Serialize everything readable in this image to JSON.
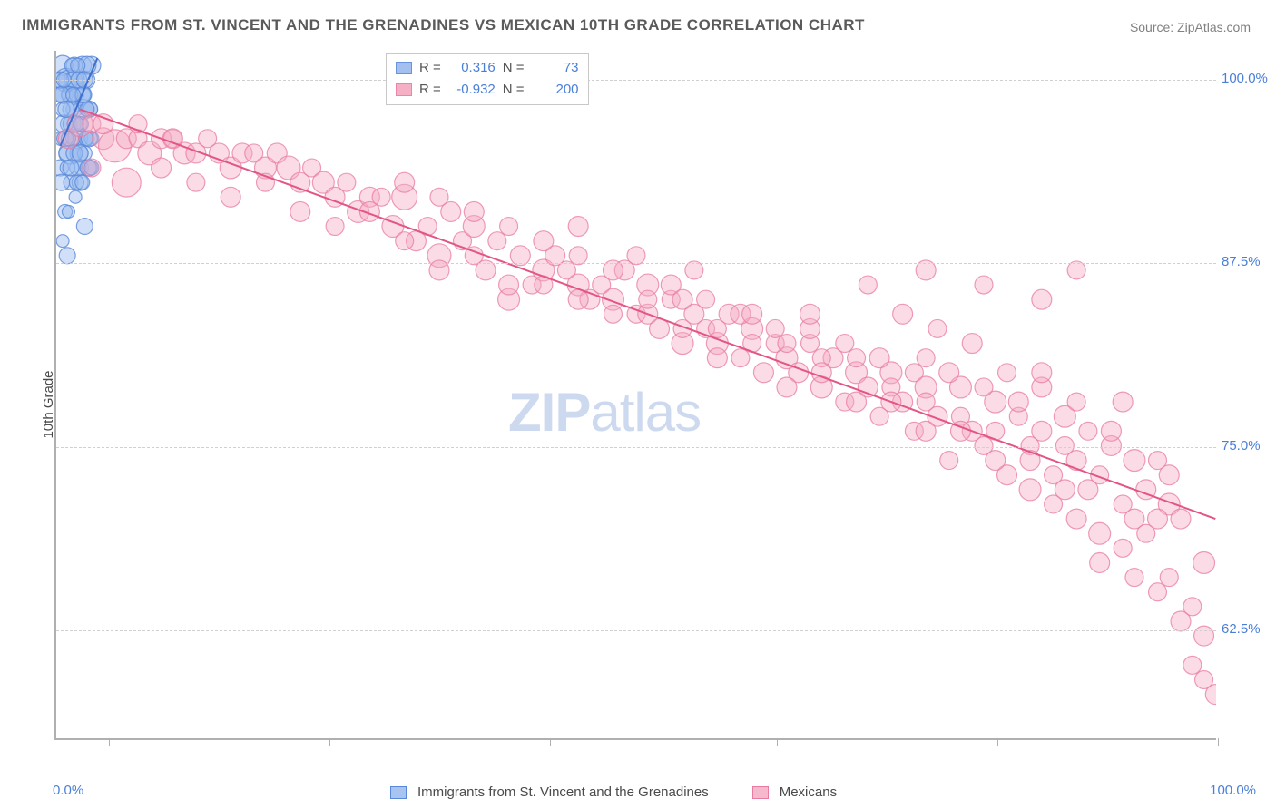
{
  "title": "IMMIGRANTS FROM ST. VINCENT AND THE GRENADINES VS MEXICAN 10TH GRADE CORRELATION CHART",
  "source": "Source: ZipAtlas.com",
  "ylabel": "10th Grade",
  "watermark_a": "ZIP",
  "watermark_b": "atlas",
  "chart": {
    "type": "scatter",
    "xlim": [
      0,
      100
    ],
    "ylim": [
      55,
      102
    ],
    "y_ticks": [
      62.5,
      75.0,
      87.5,
      100.0
    ],
    "y_tick_labels": [
      "62.5%",
      "75.0%",
      "87.5%",
      "100.0%"
    ],
    "x_end_labels": [
      "0.0%",
      "100.0%"
    ],
    "x_tick_positions": [
      4.5,
      23.5,
      42.5,
      62,
      81,
      100
    ],
    "grid_color": "#d0d0d0",
    "axis_color": "#b0b0b0",
    "background_color": "#ffffff",
    "label_color": "#4a7fd8"
  },
  "series": [
    {
      "name": "Immigrants from St. Vincent and the Grenadines",
      "fill": "#9abaf0",
      "fill_opacity": 0.45,
      "stroke": "#5988d8",
      "stroke_opacity": 0.8,
      "r_label": "R =",
      "r_value": "0.316",
      "n_label": "N =",
      "n_value": "73",
      "trend": {
        "x1": 0.3,
        "y1": 95.5,
        "x2": 3.5,
        "y2": 101.5,
        "stroke": "#3d6fcf",
        "width": 2
      },
      "points": [
        [
          0.3,
          94,
          9
        ],
        [
          0.4,
          96,
          8
        ],
        [
          0.5,
          101,
          11
        ],
        [
          0.6,
          99,
          10
        ],
        [
          0.8,
          100,
          13
        ],
        [
          1.0,
          97,
          9
        ],
        [
          1.1,
          95,
          12
        ],
        [
          1.2,
          93,
          8
        ],
        [
          1.4,
          100,
          10
        ],
        [
          1.5,
          98,
          9
        ],
        [
          1.6,
          92,
          7
        ],
        [
          1.8,
          96,
          11
        ],
        [
          2.0,
          99,
          12
        ],
        [
          2.1,
          94,
          8
        ],
        [
          2.2,
          101,
          10
        ],
        [
          2.4,
          90,
          9
        ],
        [
          0.5,
          89,
          7
        ],
        [
          0.7,
          91,
          8
        ],
        [
          0.9,
          88,
          9
        ],
        [
          1.0,
          100,
          11
        ],
        [
          1.3,
          97,
          10
        ],
        [
          1.5,
          101,
          9
        ],
        [
          1.7,
          99,
          8
        ],
        [
          1.9,
          95,
          10
        ],
        [
          2.0,
          93,
          9
        ],
        [
          2.3,
          98,
          11
        ],
        [
          2.5,
          100,
          10
        ],
        [
          2.6,
          96,
          8
        ],
        [
          2.8,
          94,
          9
        ],
        [
          3.0,
          101,
          10
        ],
        [
          0.2,
          99,
          8
        ],
        [
          0.4,
          93,
          9
        ],
        [
          0.6,
          97,
          10
        ],
        [
          0.8,
          95,
          8
        ],
        [
          1.0,
          91,
          7
        ],
        [
          1.2,
          98,
          9
        ],
        [
          1.4,
          96,
          8
        ],
        [
          1.6,
          100,
          10
        ],
        [
          1.8,
          94,
          9
        ],
        [
          2.0,
          97,
          8
        ],
        [
          2.2,
          99,
          9
        ],
        [
          2.4,
          95,
          8
        ],
        [
          2.6,
          101,
          10
        ],
        [
          2.8,
          98,
          9
        ],
        [
          3.0,
          96,
          8
        ],
        [
          0.3,
          100,
          9
        ],
        [
          0.5,
          98,
          8
        ],
        [
          0.7,
          96,
          9
        ],
        [
          0.9,
          94,
          8
        ],
        [
          1.1,
          99,
          9
        ],
        [
          1.3,
          101,
          8
        ],
        [
          1.5,
          95,
          9
        ],
        [
          1.7,
          93,
          8
        ],
        [
          1.9,
          100,
          9
        ],
        [
          2.1,
          97,
          8
        ],
        [
          2.3,
          99,
          9
        ],
        [
          2.5,
          96,
          8
        ],
        [
          2.7,
          94,
          9
        ],
        [
          2.9,
          98,
          8
        ],
        [
          0.4,
          99,
          9
        ],
        [
          0.6,
          100,
          8
        ],
        [
          0.8,
          98,
          9
        ],
        [
          1.0,
          96,
          8
        ],
        [
          1.2,
          94,
          9
        ],
        [
          1.4,
          99,
          8
        ],
        [
          1.6,
          97,
          9
        ],
        [
          1.8,
          101,
          8
        ],
        [
          2.0,
          95,
          9
        ],
        [
          2.2,
          93,
          8
        ],
        [
          2.4,
          100,
          9
        ],
        [
          2.6,
          98,
          8
        ],
        [
          2.8,
          96,
          9
        ],
        [
          3.0,
          94,
          8
        ]
      ]
    },
    {
      "name": "Mexicans",
      "fill": "#f4a8c0",
      "fill_opacity": 0.4,
      "stroke": "#e87ba0",
      "stroke_opacity": 0.75,
      "r_label": "R =",
      "r_value": "-0.932",
      "n_label": "N =",
      "n_value": "200",
      "trend": {
        "x1": 2,
        "y1": 98,
        "x2": 100,
        "y2": 70,
        "stroke": "#e25584",
        "width": 2
      },
      "points": [
        [
          1,
          96,
          11
        ],
        [
          2,
          97,
          14
        ],
        [
          3,
          97,
          10
        ],
        [
          4,
          96,
          12
        ],
        [
          5,
          95.5,
          18
        ],
        [
          6,
          96,
          11
        ],
        [
          7,
          96,
          10
        ],
        [
          8,
          95,
          13
        ],
        [
          9,
          96,
          11
        ],
        [
          10,
          96,
          10
        ],
        [
          11,
          95,
          12
        ],
        [
          12,
          95,
          11
        ],
        [
          13,
          96,
          10
        ],
        [
          14,
          95,
          11
        ],
        [
          15,
          94,
          12
        ],
        [
          16,
          95,
          11
        ],
        [
          17,
          95,
          10
        ],
        [
          18,
          94,
          12
        ],
        [
          19,
          95,
          11
        ],
        [
          20,
          94,
          13
        ],
        [
          21,
          93,
          11
        ],
        [
          22,
          94,
          10
        ],
        [
          23,
          93,
          12
        ],
        [
          24,
          92,
          11
        ],
        [
          25,
          93,
          10
        ],
        [
          26,
          91,
          12
        ],
        [
          27,
          92,
          11
        ],
        [
          28,
          92,
          10
        ],
        [
          29,
          90,
          12
        ],
        [
          30,
          92,
          14
        ],
        [
          31,
          89,
          11
        ],
        [
          32,
          90,
          10
        ],
        [
          33,
          88,
          13
        ],
        [
          34,
          91,
          11
        ],
        [
          35,
          89,
          10
        ],
        [
          36,
          90,
          12
        ],
        [
          37,
          87,
          11
        ],
        [
          38,
          89,
          10
        ],
        [
          39,
          85,
          12
        ],
        [
          40,
          88,
          11
        ],
        [
          41,
          86,
          10
        ],
        [
          42,
          87,
          12
        ],
        [
          43,
          88,
          11
        ],
        [
          44,
          87,
          10
        ],
        [
          45,
          86,
          12
        ],
        [
          46,
          85,
          11
        ],
        [
          47,
          86,
          10
        ],
        [
          48,
          85,
          12
        ],
        [
          49,
          87,
          11
        ],
        [
          50,
          84,
          10
        ],
        [
          51,
          86,
          12
        ],
        [
          52,
          83,
          11
        ],
        [
          53,
          85,
          10
        ],
        [
          54,
          82,
          12
        ],
        [
          55,
          84,
          11
        ],
        [
          56,
          83,
          10
        ],
        [
          57,
          82,
          12
        ],
        [
          58,
          84,
          11
        ],
        [
          59,
          81,
          10
        ],
        [
          60,
          83,
          12
        ],
        [
          61,
          80,
          11
        ],
        [
          62,
          82,
          10
        ],
        [
          63,
          81,
          12
        ],
        [
          64,
          80,
          11
        ],
        [
          65,
          82,
          10
        ],
        [
          66,
          79,
          12
        ],
        [
          67,
          81,
          11
        ],
        [
          68,
          78,
          10
        ],
        [
          69,
          80,
          12
        ],
        [
          70,
          79,
          11
        ],
        [
          71,
          77,
          10
        ],
        [
          72,
          80,
          12
        ],
        [
          73,
          78,
          11
        ],
        [
          74,
          76,
          10
        ],
        [
          75,
          79,
          12
        ],
        [
          76,
          77,
          11
        ],
        [
          77,
          74,
          10
        ],
        [
          78,
          79,
          12
        ],
        [
          79,
          76,
          11
        ],
        [
          80,
          75,
          10
        ],
        [
          81,
          78,
          12
        ],
        [
          82,
          73,
          11
        ],
        [
          83,
          77,
          10
        ],
        [
          84,
          72,
          12
        ],
        [
          85,
          76,
          11
        ],
        [
          86,
          71,
          10
        ],
        [
          87,
          77,
          12
        ],
        [
          88,
          70,
          11
        ],
        [
          89,
          76,
          10
        ],
        [
          90,
          69,
          12
        ],
        [
          91,
          75,
          11
        ],
        [
          92,
          68,
          10
        ],
        [
          93,
          74,
          12
        ],
        [
          94,
          72,
          11
        ],
        [
          95,
          65,
          10
        ],
        [
          96,
          71,
          12
        ],
        [
          97,
          70,
          11
        ],
        [
          98,
          60,
          10
        ],
        [
          99,
          67,
          12
        ],
        [
          100,
          58,
          11
        ],
        [
          3,
          94,
          10
        ],
        [
          6,
          93,
          16
        ],
        [
          9,
          94,
          11
        ],
        [
          12,
          93,
          10
        ],
        [
          15,
          92,
          11
        ],
        [
          18,
          93,
          10
        ],
        [
          21,
          91,
          11
        ],
        [
          24,
          90,
          10
        ],
        [
          27,
          91,
          11
        ],
        [
          30,
          89,
          10
        ],
        [
          33,
          87,
          11
        ],
        [
          36,
          88,
          10
        ],
        [
          39,
          86,
          11
        ],
        [
          42,
          86,
          10
        ],
        [
          45,
          85,
          11
        ],
        [
          48,
          84,
          10
        ],
        [
          51,
          84,
          11
        ],
        [
          54,
          83,
          10
        ],
        [
          57,
          81,
          11
        ],
        [
          60,
          82,
          10
        ],
        [
          63,
          79,
          11
        ],
        [
          66,
          81,
          10
        ],
        [
          69,
          78,
          11
        ],
        [
          72,
          79,
          10
        ],
        [
          75,
          76,
          11
        ],
        [
          78,
          77,
          10
        ],
        [
          81,
          74,
          11
        ],
        [
          84,
          75,
          10
        ],
        [
          87,
          72,
          11
        ],
        [
          90,
          73,
          10
        ],
        [
          93,
          70,
          11
        ],
        [
          96,
          66,
          10
        ],
        [
          99,
          62,
          11
        ],
        [
          75,
          87,
          11
        ],
        [
          80,
          86,
          10
        ],
        [
          85,
          85,
          11
        ],
        [
          88,
          87,
          10
        ],
        [
          92,
          78,
          11
        ],
        [
          95,
          74,
          10
        ],
        [
          88,
          74,
          11
        ],
        [
          70,
          86,
          10
        ],
        [
          73,
          84,
          11
        ],
        [
          76,
          83,
          10
        ],
        [
          79,
          82,
          11
        ],
        [
          82,
          80,
          10
        ],
        [
          85,
          79,
          11
        ],
        [
          88,
          78,
          10
        ],
        [
          91,
          76,
          11
        ],
        [
          94,
          69,
          10
        ],
        [
          97,
          63,
          11
        ],
        [
          50,
          88,
          10
        ],
        [
          53,
          86,
          11
        ],
        [
          56,
          85,
          10
        ],
        [
          59,
          84,
          11
        ],
        [
          62,
          83,
          10
        ],
        [
          65,
          83,
          11
        ],
        [
          68,
          82,
          10
        ],
        [
          71,
          81,
          11
        ],
        [
          74,
          80,
          10
        ],
        [
          77,
          80,
          11
        ],
        [
          80,
          79,
          10
        ],
        [
          83,
          78,
          11
        ],
        [
          86,
          73,
          10
        ],
        [
          89,
          72,
          11
        ],
        [
          92,
          71,
          10
        ],
        [
          95,
          70,
          11
        ],
        [
          98,
          64,
          10
        ],
        [
          30,
          93,
          11
        ],
        [
          33,
          92,
          10
        ],
        [
          36,
          91,
          11
        ],
        [
          39,
          90,
          10
        ],
        [
          42,
          89,
          11
        ],
        [
          45,
          88,
          10
        ],
        [
          48,
          87,
          11
        ],
        [
          51,
          85,
          10
        ],
        [
          54,
          85,
          11
        ],
        [
          57,
          83,
          10
        ],
        [
          60,
          84,
          11
        ],
        [
          63,
          82,
          10
        ],
        [
          66,
          80,
          11
        ],
        [
          69,
          81,
          10
        ],
        [
          72,
          78,
          11
        ],
        [
          75,
          78,
          10
        ],
        [
          78,
          76,
          11
        ],
        [
          81,
          76,
          10
        ],
        [
          84,
          74,
          11
        ],
        [
          87,
          75,
          10
        ],
        [
          90,
          67,
          11
        ],
        [
          93,
          66,
          10
        ],
        [
          96,
          73,
          11
        ],
        [
          99,
          59,
          10
        ],
        [
          45,
          90,
          11
        ],
        [
          55,
          87,
          10
        ],
        [
          65,
          84,
          11
        ],
        [
          75,
          81,
          10
        ],
        [
          85,
          80,
          11
        ],
        [
          4,
          97,
          11
        ],
        [
          7,
          97,
          10
        ],
        [
          10,
          96,
          11
        ]
      ]
    }
  ],
  "bottom_legend": [
    {
      "swatch_fill": "#a8c4f0",
      "swatch_stroke": "#5988d8",
      "label": "Immigrants from St. Vincent and the Grenadines"
    },
    {
      "swatch_fill": "#f6b8cc",
      "swatch_stroke": "#e87ba0",
      "label": "Mexicans"
    }
  ]
}
